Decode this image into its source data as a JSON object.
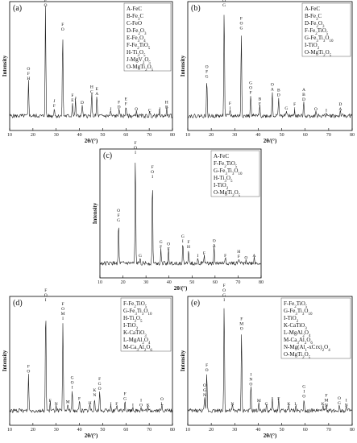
{
  "chart_data": [
    {
      "id": "a",
      "type": "line",
      "panel_label": "(a)",
      "xlabel": "2θ/(°)",
      "ylabel": "Intensity",
      "xlim": [
        10,
        80
      ],
      "x_ticks": [
        "10",
        "20",
        "30",
        "40",
        "50",
        "60",
        "70",
        "80"
      ],
      "legend": [
        "A-FeC",
        "B-Fe3C",
        "C-FeO",
        "D-Fe2O3",
        "E-Fe3O4",
        "F-Fe2TiO5",
        "H-Ti3O5",
        "J-MgV2O5",
        "O-MgTi2O5"
      ],
      "peaks": [
        {
          "x": 18.1,
          "h": 0.33,
          "label": "O F H"
        },
        {
          "x": 25.4,
          "h": 1.0,
          "label": "F O"
        },
        {
          "x": 29.2,
          "h": 0.08,
          "label": "J F"
        },
        {
          "x": 32.8,
          "h": 0.78,
          "label": "F O"
        },
        {
          "x": 37.0,
          "h": 0.13,
          "label": "F E"
        },
        {
          "x": 38.3,
          "h": 0.15,
          "label": "J"
        },
        {
          "x": 41.2,
          "h": 0.11,
          "label": "D"
        },
        {
          "x": 45.3,
          "h": 0.21,
          "label": "H C"
        },
        {
          "x": 47.5,
          "h": 0.19,
          "label": "E A"
        },
        {
          "x": 53.4,
          "h": 0.05,
          "label": "J"
        },
        {
          "x": 57.0,
          "h": 0.07,
          "label": "F D"
        },
        {
          "x": 60.0,
          "h": 0.1,
          "label": "E F"
        },
        {
          "x": 64.5,
          "h": 0.05,
          "label": "O"
        },
        {
          "x": 70.2,
          "h": 0.04,
          "label": "C"
        },
        {
          "x": 74.5,
          "h": 0.05,
          "label": "J"
        },
        {
          "x": 77.5,
          "h": 0.07,
          "label": "H B"
        }
      ]
    },
    {
      "id": "b",
      "type": "line",
      "panel_label": "(b)",
      "xlabel": "2θ/(°)",
      "ylabel": "Intensity",
      "xlim": [
        10,
        80
      ],
      "x_ticks": [
        "10",
        "20",
        "30",
        "40",
        "50",
        "60",
        "70",
        "80"
      ],
      "legend": [
        "A-FeC",
        "B-Fe3C",
        "D-Fe2O3",
        "F-Fe2TiO5",
        "G-Fe3Ti3O10",
        "I-TiO2",
        "O-MgTi2O5"
      ],
      "peaks": [
        {
          "x": 18.1,
          "h": 0.35,
          "label": "O F G"
        },
        {
          "x": 25.5,
          "h": 1.0,
          "label": "F O G"
        },
        {
          "x": 28.0,
          "h": 0.06,
          "label": "F I"
        },
        {
          "x": 32.8,
          "h": 0.79,
          "label": "F O G"
        },
        {
          "x": 36.8,
          "h": 0.2,
          "label": "G O F"
        },
        {
          "x": 40.7,
          "h": 0.1,
          "label": "B F"
        },
        {
          "x": 46.0,
          "h": 0.23,
          "label": "O A"
        },
        {
          "x": 48.7,
          "h": 0.18,
          "label": "B D"
        },
        {
          "x": 52.0,
          "h": 0.06,
          "label": "G"
        },
        {
          "x": 55.5,
          "h": 0.05,
          "label": "F I"
        },
        {
          "x": 59.4,
          "h": 0.14,
          "label": "A B D"
        },
        {
          "x": 64.5,
          "h": 0.05,
          "label": "O"
        },
        {
          "x": 69.0,
          "h": 0.04,
          "label": "I"
        },
        {
          "x": 75.0,
          "h": 0.05,
          "label": "D A"
        }
      ]
    },
    {
      "id": "c",
      "type": "line",
      "panel_label": "(c)",
      "xlabel": "2θ/(°)",
      "ylabel": "Intensity",
      "xlim": [
        10,
        80
      ],
      "x_ticks": [
        "10",
        "20",
        "30",
        "40",
        "50",
        "60",
        "70",
        "80"
      ],
      "legend": [
        "A-FeC",
        "F-Fe2TiO5",
        "G-Fe3Ti3O10",
        "H-Ti3O5",
        "I-TiO2",
        "O-MgTi2O5"
      ],
      "peaks": [
        {
          "x": 18.1,
          "h": 0.38,
          "label": "O F G"
        },
        {
          "x": 25.4,
          "h": 1.0,
          "label": "F O I"
        },
        {
          "x": 27.5,
          "h": 0.06,
          "label": "G"
        },
        {
          "x": 32.8,
          "h": 0.78,
          "label": "F O I"
        },
        {
          "x": 36.5,
          "h": 0.14,
          "label": "G F"
        },
        {
          "x": 39.8,
          "h": 0.12,
          "label": "O F"
        },
        {
          "x": 46.0,
          "h": 0.19,
          "label": "G I"
        },
        {
          "x": 48.5,
          "h": 0.14,
          "label": "F H"
        },
        {
          "x": 52.5,
          "h": 0.06,
          "label": "I"
        },
        {
          "x": 55.3,
          "h": 0.08,
          "label": "F"
        },
        {
          "x": 59.6,
          "h": 0.15,
          "label": "O A"
        },
        {
          "x": 64.5,
          "h": 0.06,
          "label": "F"
        },
        {
          "x": 70.3,
          "h": 0.05,
          "label": "H F"
        },
        {
          "x": 73.5,
          "h": 0.04,
          "label": "O"
        },
        {
          "x": 77.0,
          "h": 0.06,
          "label": "A"
        }
      ]
    },
    {
      "id": "d",
      "type": "line",
      "panel_label": "(d)",
      "xlabel": "2θ/(°)",
      "ylabel": "Intensity",
      "xlim": [
        10,
        80
      ],
      "x_ticks": [
        "10",
        "20",
        "30",
        "40",
        "50",
        "60",
        "70",
        "80"
      ],
      "legend": [
        "F-Fe2TiO5",
        "G-Fe3Ti3O10",
        "H-Ti3O5",
        "I-TiO2",
        "K-CaTiO3",
        "L-MgAl2O4",
        "M-Ca3Al2O6"
      ],
      "peaks": [
        {
          "x": 18.1,
          "h": 0.35,
          "label": "F O"
        },
        {
          "x": 25.5,
          "h": 1.0,
          "label": "F O I"
        },
        {
          "x": 27.4,
          "h": 0.08,
          "label": "F"
        },
        {
          "x": 30.0,
          "h": 0.05,
          "label": "N"
        },
        {
          "x": 32.9,
          "h": 0.83,
          "label": "F O M I"
        },
        {
          "x": 35.0,
          "h": 0.07,
          "label": "M"
        },
        {
          "x": 36.9,
          "h": 0.2,
          "label": "G O I"
        },
        {
          "x": 40.0,
          "h": 0.1,
          "label": "F"
        },
        {
          "x": 44.5,
          "h": 0.06,
          "label": "H"
        },
        {
          "x": 46.5,
          "h": 0.13,
          "label": "K N"
        },
        {
          "x": 48.7,
          "h": 0.19,
          "label": "F G O"
        },
        {
          "x": 53.5,
          "h": 0.05,
          "label": "I"
        },
        {
          "x": 56.0,
          "h": 0.05,
          "label": "F"
        },
        {
          "x": 59.6,
          "h": 0.1,
          "label": "F G"
        },
        {
          "x": 63.0,
          "h": 0.04,
          "label": "I"
        },
        {
          "x": 66.5,
          "h": 0.04,
          "label": "I O"
        },
        {
          "x": 69.5,
          "h": 0.04,
          "label": "K"
        },
        {
          "x": 75.5,
          "h": 0.05,
          "label": "O L"
        }
      ]
    },
    {
      "id": "e",
      "type": "line",
      "panel_label": "(e)",
      "xlabel": "2θ/(°)",
      "ylabel": "Intensity",
      "xlim": [
        10,
        80
      ],
      "x_ticks": [
        "10",
        "20",
        "30",
        "40",
        "50",
        "60",
        "70",
        "80"
      ],
      "legend": [
        "F-Fe2TiO5",
        "G-Fe3Ti3O10",
        "I-TiO2",
        "K-CaTiO3",
        "L-MgAl2O4",
        "M-Ca3Al2O6",
        "N-Mg(Al1-xCrx)2O4",
        "O-MgTi2O5"
      ],
      "peaks": [
        {
          "x": 18.1,
          "h": 0.36,
          "label": "F O"
        },
        {
          "x": 17.2,
          "h": 0.13,
          "label": "O G N"
        },
        {
          "x": 25.5,
          "h": 1.0,
          "label": "F O G I"
        },
        {
          "x": 29.0,
          "h": 0.05,
          "label": "N"
        },
        {
          "x": 32.9,
          "h": 0.74,
          "label": "F M O"
        },
        {
          "x": 36.9,
          "h": 0.23,
          "label": "I N O"
        },
        {
          "x": 40.3,
          "h": 0.08,
          "label": "M"
        },
        {
          "x": 43.5,
          "h": 0.05,
          "label": "G"
        },
        {
          "x": 46.0,
          "h": 0.1,
          "label": "I"
        },
        {
          "x": 48.7,
          "h": 0.1,
          "label": "F"
        },
        {
          "x": 53.0,
          "h": 0.05,
          "label": "K"
        },
        {
          "x": 56.0,
          "h": 0.05,
          "label": "L"
        },
        {
          "x": 59.5,
          "h": 0.12,
          "label": "G I O"
        },
        {
          "x": 67.5,
          "h": 0.05,
          "label": "K"
        },
        {
          "x": 69.0,
          "h": 0.04,
          "label": "F M N"
        },
        {
          "x": 74.5,
          "h": 0.06,
          "label": "O G"
        },
        {
          "x": 77.5,
          "h": 0.04,
          "label": "I N"
        }
      ]
    }
  ]
}
